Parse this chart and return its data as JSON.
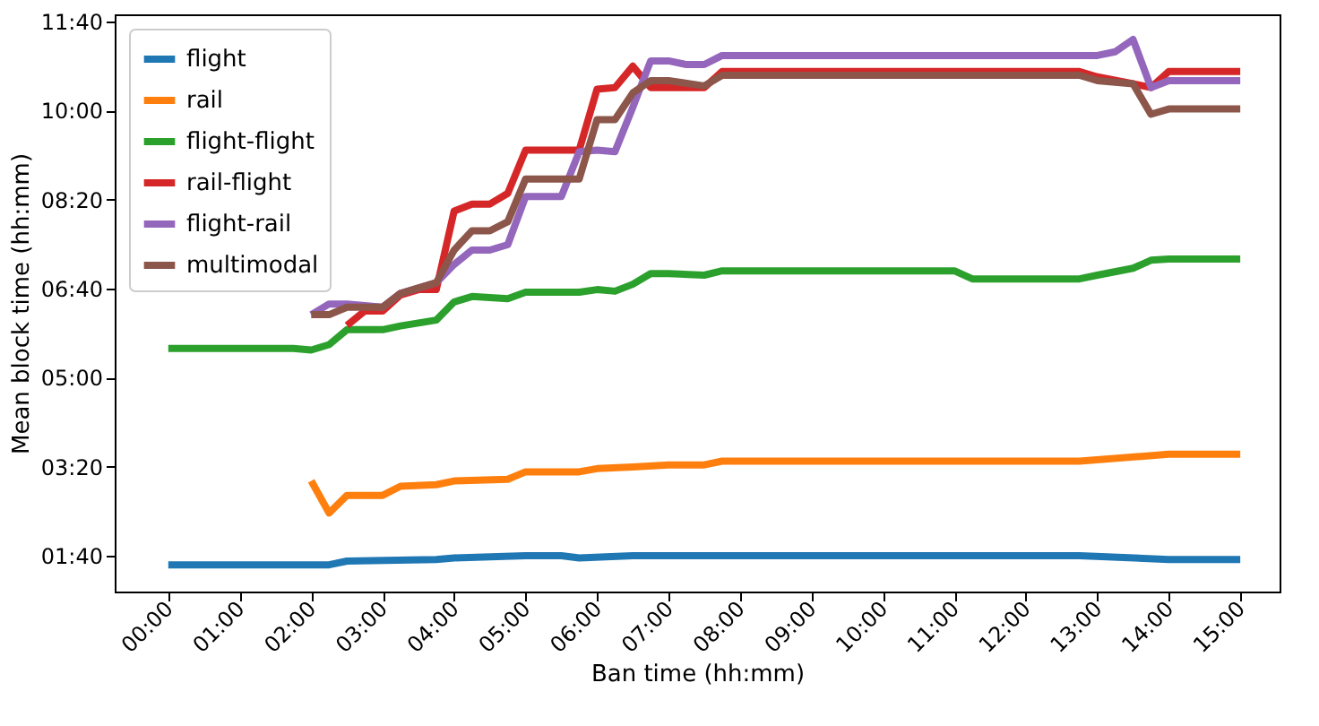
{
  "chart_data": {
    "type": "line",
    "xlabel": "Ban time (hh:mm)",
    "ylabel": "Mean block time (hh:mm)",
    "xlim": [
      -0.75,
      15.55
    ],
    "ylim": [
      1.0,
      11.8
    ],
    "xticks": [
      {
        "value": 0,
        "label": "00:00"
      },
      {
        "value": 1,
        "label": "01:00"
      },
      {
        "value": 2,
        "label": "02:00"
      },
      {
        "value": 3,
        "label": "03:00"
      },
      {
        "value": 4,
        "label": "04:00"
      },
      {
        "value": 5,
        "label": "05:00"
      },
      {
        "value": 6,
        "label": "06:00"
      },
      {
        "value": 7,
        "label": "07:00"
      },
      {
        "value": 8,
        "label": "08:00"
      },
      {
        "value": 9,
        "label": "09:00"
      },
      {
        "value": 10,
        "label": "10:00"
      },
      {
        "value": 11,
        "label": "11:00"
      },
      {
        "value": 12,
        "label": "12:00"
      },
      {
        "value": 13,
        "label": "13:00"
      },
      {
        "value": 14,
        "label": "14:00"
      },
      {
        "value": 15,
        "label": "15:00"
      }
    ],
    "yticks": [
      {
        "value": 1.6667,
        "label": "01:40"
      },
      {
        "value": 3.3333,
        "label": "03:20"
      },
      {
        "value": 5,
        "label": "05:00"
      },
      {
        "value": 6.6667,
        "label": "06:40"
      },
      {
        "value": 8.3333,
        "label": "08:20"
      },
      {
        "value": 10,
        "label": "10:00"
      },
      {
        "value": 11.6667,
        "label": "11:40"
      }
    ],
    "grid": false,
    "legend": "top left",
    "marker": "none",
    "line_style": "solid",
    "series": [
      {
        "name": "flight",
        "color": "#1f77b4",
        "x": [
          0,
          2.25,
          2.5,
          3.75,
          4,
          5,
          5.5,
          5.75,
          6.5,
          7.75,
          12.75,
          14,
          15
        ],
        "values": [
          1.5,
          1.5,
          1.57,
          1.6,
          1.63,
          1.67,
          1.67,
          1.63,
          1.67,
          1.67,
          1.67,
          1.6,
          1.6
        ]
      },
      {
        "name": "rail",
        "color": "#ff7f0e",
        "x": [
          2,
          2.25,
          2.5,
          3,
          3.25,
          3.75,
          4,
          4.75,
          5,
          5.75,
          6,
          6.5,
          7,
          7.5,
          7.75,
          12.75,
          14,
          15
        ],
        "values": [
          3.07,
          2.47,
          2.8,
          2.8,
          2.97,
          3.0,
          3.07,
          3.1,
          3.24,
          3.24,
          3.3,
          3.33,
          3.37,
          3.37,
          3.44,
          3.44,
          3.57,
          3.57
        ]
      },
      {
        "name": "flight-flight",
        "color": "#2ca02c",
        "x": [
          0,
          1.75,
          2,
          2.25,
          2.5,
          3,
          3.25,
          3.75,
          4,
          4.25,
          4.75,
          5,
          5.75,
          6,
          6.25,
          6.5,
          6.75,
          7,
          7.5,
          7.75,
          11,
          11.25,
          12.75,
          13,
          13.5,
          13.75,
          14,
          15
        ],
        "values": [
          5.55,
          5.55,
          5.52,
          5.62,
          5.9,
          5.9,
          5.97,
          6.08,
          6.42,
          6.52,
          6.48,
          6.6,
          6.6,
          6.65,
          6.62,
          6.75,
          6.95,
          6.95,
          6.92,
          7.0,
          7.0,
          6.85,
          6.85,
          6.92,
          7.05,
          7.2,
          7.22,
          7.22
        ]
      },
      {
        "name": "rail-flight",
        "color": "#d62728",
        "x": [
          2.5,
          2.75,
          3,
          3.25,
          3.5,
          3.75,
          4,
          4.25,
          4.5,
          4.75,
          5,
          5.75,
          6,
          6.25,
          6.5,
          6.75,
          7.5,
          7.75,
          12.75,
          13,
          13.5,
          13.75,
          14,
          15
        ],
        "values": [
          5.98,
          6.25,
          6.25,
          6.55,
          6.65,
          6.65,
          8.12,
          8.25,
          8.25,
          8.45,
          9.26,
          9.26,
          10.4,
          10.43,
          10.83,
          10.43,
          10.43,
          10.73,
          10.73,
          10.63,
          10.5,
          10.43,
          10.73,
          10.73
        ]
      },
      {
        "name": "flight-rail",
        "color": "#9467bd",
        "x": [
          2,
          2.25,
          2.5,
          3,
          3.25,
          3.75,
          4,
          4.25,
          4.5,
          4.75,
          5,
          5.5,
          5.75,
          6,
          6.25,
          6.5,
          6.75,
          7,
          7.25,
          7.5,
          7.75,
          12.75,
          13,
          13.25,
          13.5,
          13.75,
          14,
          15
        ],
        "values": [
          6.18,
          6.38,
          6.38,
          6.32,
          6.58,
          6.78,
          7.12,
          7.39,
          7.39,
          7.49,
          8.39,
          8.39,
          9.23,
          9.26,
          9.23,
          10.06,
          10.93,
          10.93,
          10.86,
          10.86,
          11.03,
          11.03,
          11.03,
          11.1,
          11.33,
          10.43,
          10.56,
          10.56
        ]
      },
      {
        "name": "multimodal",
        "color": "#8c564b",
        "x": [
          2,
          2.25,
          2.5,
          3,
          3.25,
          3.75,
          4,
          4.25,
          4.5,
          4.75,
          5,
          5.75,
          6,
          6.25,
          6.5,
          6.75,
          7,
          7.5,
          7.75,
          12.75,
          13,
          13.5,
          13.75,
          14,
          15
        ],
        "values": [
          6.18,
          6.18,
          6.32,
          6.32,
          6.58,
          6.78,
          7.39,
          7.75,
          7.75,
          7.92,
          8.72,
          8.72,
          9.83,
          9.83,
          10.33,
          10.56,
          10.56,
          10.46,
          10.66,
          10.66,
          10.56,
          10.5,
          9.93,
          10.03,
          10.03
        ]
      }
    ]
  }
}
